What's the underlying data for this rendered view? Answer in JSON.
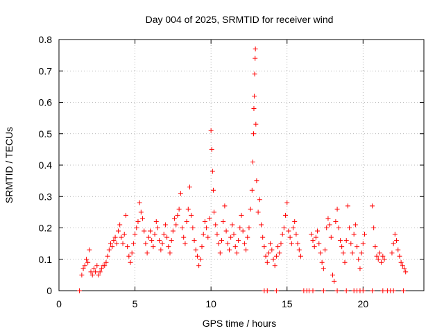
{
  "chart_data": {
    "type": "scatter",
    "title": "Day 004 of 2025, SRMTID for receiver wind",
    "xlabel": "GPS time / hours",
    "ylabel": "SRMTID / TECUs",
    "xlim": [
      0,
      24
    ],
    "ylim": [
      0,
      0.8
    ],
    "x_ticks": [
      0,
      5,
      10,
      15,
      20
    ],
    "y_ticks": [
      0,
      0.1,
      0.2,
      0.3,
      0.4,
      0.5,
      0.6,
      0.7,
      0.8
    ],
    "x_tick_labels": [
      "0",
      "5",
      "10",
      "15",
      "20"
    ],
    "y_tick_labels": [
      "0",
      "0.1",
      "0.2",
      "0.3",
      "0.4",
      "0.5",
      "0.6",
      "0.7",
      "0.8"
    ],
    "grid": true,
    "marker": "plus",
    "color": "#ff0000",
    "series": [
      {
        "name": "SRMTID",
        "points": [
          [
            1.5,
            0.05
          ],
          [
            1.6,
            0.07
          ],
          [
            1.7,
            0.08
          ],
          [
            1.8,
            0.1
          ],
          [
            1.9,
            0.09
          ],
          [
            2.0,
            0.13
          ],
          [
            2.1,
            0.06
          ],
          [
            2.2,
            0.05
          ],
          [
            2.3,
            0.07
          ],
          [
            2.4,
            0.06
          ],
          [
            2.5,
            0.08
          ],
          [
            2.6,
            0.05
          ],
          [
            2.7,
            0.06
          ],
          [
            2.8,
            0.07
          ],
          [
            2.9,
            0.08
          ],
          [
            3.0,
            0.08
          ],
          [
            3.1,
            0.09
          ],
          [
            3.2,
            0.11
          ],
          [
            3.3,
            0.13
          ],
          [
            3.4,
            0.15
          ],
          [
            3.5,
            0.14
          ],
          [
            3.6,
            0.16
          ],
          [
            3.7,
            0.17
          ],
          [
            3.8,
            0.15
          ],
          [
            3.9,
            0.19
          ],
          [
            4.0,
            0.21
          ],
          [
            4.1,
            0.17
          ],
          [
            4.2,
            0.15
          ],
          [
            4.3,
            0.18
          ],
          [
            4.4,
            0.24
          ],
          [
            4.5,
            0.14
          ],
          [
            4.6,
            0.11
          ],
          [
            4.7,
            0.09
          ],
          [
            4.8,
            0.12
          ],
          [
            4.9,
            0.15
          ],
          [
            5.0,
            0.18
          ],
          [
            5.1,
            0.2
          ],
          [
            5.2,
            0.22
          ],
          [
            5.3,
            0.28
          ],
          [
            5.4,
            0.25
          ],
          [
            5.5,
            0.23
          ],
          [
            5.6,
            0.19
          ],
          [
            5.7,
            0.15
          ],
          [
            5.8,
            0.12
          ],
          [
            5.9,
            0.17
          ],
          [
            6.0,
            0.19
          ],
          [
            6.1,
            0.16
          ],
          [
            6.2,
            0.14
          ],
          [
            6.3,
            0.18
          ],
          [
            6.4,
            0.22
          ],
          [
            6.5,
            0.2
          ],
          [
            6.6,
            0.16
          ],
          [
            6.7,
            0.13
          ],
          [
            6.8,
            0.15
          ],
          [
            6.9,
            0.18
          ],
          [
            7.0,
            0.21
          ],
          [
            7.1,
            0.17
          ],
          [
            7.2,
            0.14
          ],
          [
            7.3,
            0.12
          ],
          [
            7.4,
            0.16
          ],
          [
            7.5,
            0.19
          ],
          [
            7.6,
            0.23
          ],
          [
            7.7,
            0.21
          ],
          [
            7.8,
            0.24
          ],
          [
            7.9,
            0.26
          ],
          [
            8.0,
            0.31
          ],
          [
            8.1,
            0.2
          ],
          [
            8.2,
            0.17
          ],
          [
            8.3,
            0.15
          ],
          [
            8.4,
            0.22
          ],
          [
            8.5,
            0.26
          ],
          [
            8.6,
            0.33
          ],
          [
            8.7,
            0.24
          ],
          [
            8.8,
            0.2
          ],
          [
            8.9,
            0.16
          ],
          [
            9.0,
            0.13
          ],
          [
            9.1,
            0.11
          ],
          [
            9.2,
            0.08
          ],
          [
            9.3,
            0.1
          ],
          [
            9.4,
            0.14
          ],
          [
            9.5,
            0.18
          ],
          [
            9.6,
            0.22
          ],
          [
            9.7,
            0.2
          ],
          [
            9.8,
            0.17
          ],
          [
            9.9,
            0.23
          ],
          [
            10.0,
            0.51
          ],
          [
            10.05,
            0.45
          ],
          [
            10.1,
            0.38
          ],
          [
            10.15,
            0.32
          ],
          [
            10.2,
            0.25
          ],
          [
            10.3,
            0.21
          ],
          [
            10.4,
            0.18
          ],
          [
            10.5,
            0.15
          ],
          [
            10.6,
            0.12
          ],
          [
            10.7,
            0.16
          ],
          [
            10.8,
            0.22
          ],
          [
            10.9,
            0.27
          ],
          [
            11.0,
            0.19
          ],
          [
            11.1,
            0.15
          ],
          [
            11.2,
            0.13
          ],
          [
            11.3,
            0.17
          ],
          [
            11.4,
            0.21
          ],
          [
            11.5,
            0.18
          ],
          [
            11.6,
            0.14
          ],
          [
            11.7,
            0.12
          ],
          [
            11.8,
            0.16
          ],
          [
            11.9,
            0.2
          ],
          [
            12.0,
            0.24
          ],
          [
            12.1,
            0.19
          ],
          [
            12.2,
            0.15
          ],
          [
            12.3,
            0.13
          ],
          [
            12.4,
            0.17
          ],
          [
            12.5,
            0.2
          ],
          [
            12.6,
            0.26
          ],
          [
            12.7,
            0.32
          ],
          [
            12.75,
            0.41
          ],
          [
            12.8,
            0.5
          ],
          [
            12.82,
            0.58
          ],
          [
            12.85,
            0.62
          ],
          [
            12.87,
            0.69
          ],
          [
            12.9,
            0.74
          ],
          [
            12.92,
            0.77
          ],
          [
            12.95,
            0.53
          ],
          [
            13.0,
            0.35
          ],
          [
            13.1,
            0.25
          ],
          [
            13.2,
            0.29
          ],
          [
            13.3,
            0.21
          ],
          [
            13.4,
            0.17
          ],
          [
            13.5,
            0.14
          ],
          [
            13.6,
            0.11
          ],
          [
            13.7,
            0.09
          ],
          [
            13.8,
            0.12
          ],
          [
            13.9,
            0.15
          ],
          [
            14.0,
            0.13
          ],
          [
            14.1,
            0.1
          ],
          [
            14.2,
            0.08
          ],
          [
            14.3,
            0.11
          ],
          [
            14.4,
            0.14
          ],
          [
            14.5,
            0.12
          ],
          [
            14.6,
            0.15
          ],
          [
            14.7,
            0.18
          ],
          [
            14.8,
            0.2
          ],
          [
            14.9,
            0.24
          ],
          [
            15.0,
            0.28
          ],
          [
            15.1,
            0.19
          ],
          [
            15.2,
            0.17
          ],
          [
            15.3,
            0.15
          ],
          [
            15.4,
            0.2
          ],
          [
            15.5,
            0.22
          ],
          [
            15.6,
            0.18
          ],
          [
            15.7,
            0.15
          ],
          [
            15.8,
            0.13
          ],
          [
            15.9,
            0.11
          ],
          [
            16.6,
            0.18
          ],
          [
            16.7,
            0.16
          ],
          [
            16.8,
            0.14
          ],
          [
            16.9,
            0.17
          ],
          [
            17.0,
            0.19
          ],
          [
            17.1,
            0.15
          ],
          [
            17.2,
            0.12
          ],
          [
            17.3,
            0.09
          ],
          [
            17.4,
            0.07
          ],
          [
            17.5,
            0.13
          ],
          [
            17.6,
            0.2
          ],
          [
            17.7,
            0.23
          ],
          [
            17.8,
            0.21
          ],
          [
            17.9,
            0.17
          ],
          [
            18.0,
            0.05
          ],
          [
            18.1,
            0.03
          ],
          [
            18.2,
            0.22
          ],
          [
            18.3,
            0.26
          ],
          [
            18.4,
            0.2
          ],
          [
            18.5,
            0.16
          ],
          [
            18.6,
            0.14
          ],
          [
            18.7,
            0.12
          ],
          [
            18.8,
            0.09
          ],
          [
            18.9,
            0.16
          ],
          [
            19.0,
            0.27
          ],
          [
            19.1,
            0.2
          ],
          [
            19.2,
            0.15
          ],
          [
            19.3,
            0.12
          ],
          [
            19.4,
            0.18
          ],
          [
            19.5,
            0.21
          ],
          [
            19.6,
            0.14
          ],
          [
            19.7,
            0.1
          ],
          [
            19.8,
            0.07
          ],
          [
            19.9,
            0.12
          ],
          [
            20.0,
            0.15
          ],
          [
            20.1,
            0.18
          ],
          [
            20.6,
            0.27
          ],
          [
            20.7,
            0.2
          ],
          [
            20.8,
            0.14
          ],
          [
            20.9,
            0.11
          ],
          [
            21.0,
            0.1
          ],
          [
            21.1,
            0.12
          ],
          [
            21.2,
            0.09
          ],
          [
            21.3,
            0.11
          ],
          [
            21.4,
            0.1
          ],
          [
            21.9,
            0.12
          ],
          [
            22.0,
            0.15
          ],
          [
            22.1,
            0.18
          ],
          [
            22.2,
            0.16
          ],
          [
            22.3,
            0.13
          ],
          [
            22.4,
            0.11
          ],
          [
            22.5,
            0.09
          ],
          [
            22.6,
            0.08
          ],
          [
            22.7,
            0.07
          ],
          [
            22.8,
            0.06
          ]
        ]
      },
      {
        "name": "zero-baseline",
        "points": [
          [
            1.35,
            0.0
          ],
          [
            13.5,
            0.0
          ],
          [
            13.7,
            0.0
          ],
          [
            14.3,
            0.0
          ],
          [
            16.1,
            0.0
          ],
          [
            16.3,
            0.0
          ],
          [
            16.45,
            0.0
          ],
          [
            16.7,
            0.0
          ],
          [
            17.4,
            0.0
          ],
          [
            18.3,
            0.0
          ],
          [
            18.9,
            0.0
          ],
          [
            19.4,
            0.0
          ],
          [
            19.6,
            0.0
          ],
          [
            19.8,
            0.0
          ],
          [
            20.0,
            0.0
          ],
          [
            20.6,
            0.0
          ],
          [
            21.3,
            0.0
          ],
          [
            21.6,
            0.0
          ],
          [
            21.8,
            0.0
          ],
          [
            22.0,
            0.0
          ],
          [
            22.65,
            0.0
          ]
        ]
      }
    ]
  }
}
